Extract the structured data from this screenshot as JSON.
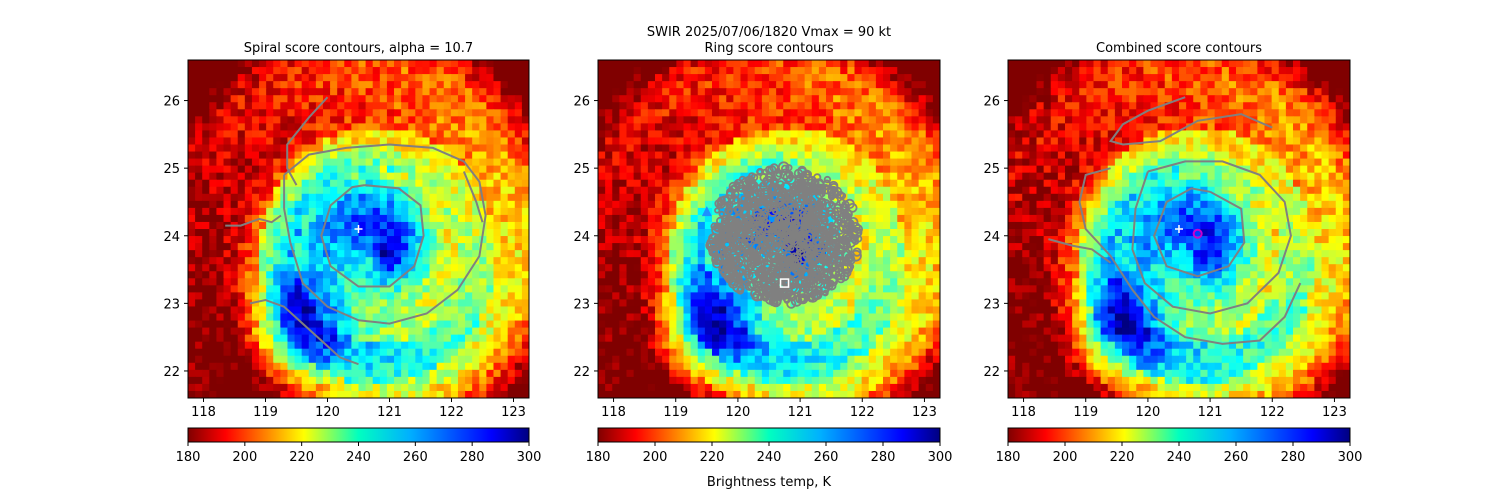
{
  "figure": {
    "suptitle_line1": "SWIR  2025/07/06/1820    Vmax = 90 kt",
    "colorbar_label": "Brightness temp, K"
  },
  "chart_data": [
    {
      "type": "heatmap",
      "title": "Spiral score contours, alpha = 10.7",
      "xlabel": "",
      "ylabel": "",
      "xlim": [
        117.75,
        123.25
      ],
      "ylim": [
        21.6,
        26.6
      ],
      "xticks": [
        118,
        119,
        120,
        121,
        122,
        123
      ],
      "yticks": [
        22,
        23,
        24,
        25,
        26
      ],
      "colormap": "jet",
      "clim": [
        180,
        300
      ],
      "colorbar_ticks": [
        180,
        200,
        220,
        240,
        260,
        280,
        300
      ],
      "storm_center": [
        120.8,
        23.7
      ],
      "eye_radius_deg": 0.55,
      "markers": [
        {
          "shape": "plus",
          "lon": 120.5,
          "lat": 24.1,
          "color": "#ffffff"
        }
      ],
      "contours": [
        {
          "color": "#808080",
          "points": [
            [
              120.6,
              24.75
            ],
            [
              121.15,
              24.7
            ],
            [
              121.5,
              24.45
            ],
            [
              121.55,
              24.0
            ],
            [
              121.4,
              23.55
            ],
            [
              121.0,
              23.25
            ],
            [
              120.5,
              23.25
            ],
            [
              120.05,
              23.55
            ],
            [
              119.9,
              24.0
            ],
            [
              120.05,
              24.45
            ],
            [
              120.4,
              24.72
            ],
            [
              120.6,
              24.75
            ]
          ]
        },
        {
          "color": "#808080",
          "points": [
            [
              119.3,
              24.9
            ],
            [
              119.7,
              25.2
            ],
            [
              120.3,
              25.3
            ],
            [
              121.0,
              25.35
            ],
            [
              121.7,
              25.3
            ],
            [
              122.2,
              25.1
            ],
            [
              122.45,
              24.8
            ],
            [
              122.55,
              24.3
            ],
            [
              122.45,
              23.7
            ],
            [
              122.1,
              23.2
            ],
            [
              121.6,
              22.85
            ],
            [
              121.0,
              22.7
            ],
            [
              120.5,
              22.75
            ],
            [
              120.0,
              22.95
            ],
            [
              119.6,
              23.3
            ],
            [
              119.4,
              23.9
            ],
            [
              119.3,
              24.4
            ],
            [
              119.3,
              24.9
            ]
          ]
        },
        {
          "color": "#808080",
          "points": [
            [
              120.0,
              26.05
            ],
            [
              119.7,
              25.75
            ],
            [
              119.35,
              25.35
            ],
            [
              119.35,
              25.0
            ],
            [
              119.5,
              24.75
            ]
          ]
        },
        {
          "color": "#808080",
          "points": [
            [
              118.35,
              24.15
            ],
            [
              118.6,
              24.15
            ],
            [
              118.9,
              24.25
            ],
            [
              119.1,
              24.2
            ],
            [
              119.25,
              24.3
            ]
          ]
        },
        {
          "color": "#808080",
          "points": [
            [
              118.75,
              23.0
            ],
            [
              119.0,
              23.05
            ],
            [
              119.3,
              22.95
            ],
            [
              119.6,
              22.7
            ],
            [
              119.9,
              22.45
            ],
            [
              120.2,
              22.2
            ],
            [
              120.5,
              22.1
            ]
          ]
        },
        {
          "color": "#808080",
          "points": [
            [
              122.2,
              24.95
            ],
            [
              122.4,
              24.5
            ],
            [
              122.5,
              24.2
            ]
          ]
        }
      ]
    },
    {
      "type": "heatmap",
      "title": "Ring score contours",
      "xlabel": "",
      "ylabel": "",
      "xlim": [
        117.75,
        123.25
      ],
      "ylim": [
        21.6,
        26.6
      ],
      "xticks": [
        118,
        119,
        120,
        121,
        122,
        123
      ],
      "yticks": [
        22,
        23,
        24,
        25,
        26
      ],
      "colormap": "jet",
      "clim": [
        180,
        300
      ],
      "colorbar_ticks": [
        180,
        200,
        220,
        240,
        260,
        280,
        300
      ],
      "storm_center": [
        120.8,
        23.7
      ],
      "eye_radius_deg": 0.55,
      "markers": [
        {
          "shape": "square",
          "lon": 120.75,
          "lat": 23.3,
          "color": "#ffffff"
        },
        {
          "shape": "triangle",
          "lon": 119.5,
          "lat": 24.35,
          "color": "#1e90ff"
        }
      ],
      "contour_field": {
        "color": "#808080",
        "center": [
          120.75,
          24.0
        ],
        "radius_deg": 1.2,
        "density": 950
      }
    },
    {
      "type": "heatmap",
      "title": "Combined score contours",
      "xlabel": "",
      "ylabel": "",
      "xlim": [
        117.75,
        123.25
      ],
      "ylim": [
        21.6,
        26.6
      ],
      "xticks": [
        118,
        119,
        120,
        121,
        122,
        123
      ],
      "yticks": [
        22,
        23,
        24,
        25,
        26
      ],
      "colormap": "jet",
      "clim": [
        180,
        300
      ],
      "colorbar_ticks": [
        180,
        200,
        220,
        240,
        260,
        280,
        300
      ],
      "storm_center": [
        120.8,
        23.7
      ],
      "eye_radius_deg": 0.55,
      "markers": [
        {
          "shape": "plus",
          "lon": 120.5,
          "lat": 24.1,
          "color": "#ffffff"
        },
        {
          "shape": "circle",
          "lon": 120.8,
          "lat": 24.03,
          "color": "#cc00cc"
        }
      ],
      "contours": [
        {
          "color": "#808080",
          "points": [
            [
              121.0,
              24.65
            ],
            [
              121.5,
              24.4
            ],
            [
              121.55,
              23.9
            ],
            [
              121.3,
              23.55
            ],
            [
              120.8,
              23.4
            ],
            [
              120.3,
              23.55
            ],
            [
              120.1,
              24.0
            ],
            [
              120.3,
              24.5
            ],
            [
              120.7,
              24.7
            ],
            [
              121.0,
              24.65
            ]
          ]
        },
        {
          "color": "#808080",
          "points": [
            [
              120.0,
              24.95
            ],
            [
              120.6,
              25.1
            ],
            [
              121.2,
              25.1
            ],
            [
              121.8,
              24.9
            ],
            [
              122.2,
              24.5
            ],
            [
              122.3,
              24.0
            ],
            [
              122.1,
              23.45
            ],
            [
              121.6,
              23.0
            ],
            [
              121.0,
              22.85
            ],
            [
              120.4,
              22.95
            ],
            [
              119.95,
              23.3
            ],
            [
              119.75,
              23.8
            ],
            [
              119.8,
              24.4
            ],
            [
              120.0,
              24.95
            ]
          ]
        },
        {
          "color": "#808080",
          "points": [
            [
              119.4,
              25.0
            ],
            [
              119.0,
              24.9
            ],
            [
              118.9,
              24.5
            ],
            [
              119.0,
              24.1
            ],
            [
              119.4,
              23.7
            ],
            [
              119.75,
              23.2
            ],
            [
              120.1,
              22.8
            ],
            [
              120.6,
              22.5
            ],
            [
              121.2,
              22.4
            ],
            [
              121.8,
              22.45
            ],
            [
              122.2,
              22.8
            ],
            [
              122.45,
              23.3
            ]
          ]
        },
        {
          "color": "#808080",
          "points": [
            [
              120.6,
              26.05
            ],
            [
              120.0,
              25.85
            ],
            [
              119.6,
              25.65
            ],
            [
              119.4,
              25.4
            ],
            [
              119.6,
              25.35
            ],
            [
              120.2,
              25.4
            ],
            [
              120.8,
              25.7
            ],
            [
              121.5,
              25.8
            ],
            [
              122.0,
              25.6
            ]
          ]
        },
        {
          "color": "#808080",
          "points": [
            [
              118.4,
              23.95
            ],
            [
              118.8,
              23.85
            ],
            [
              119.1,
              23.8
            ],
            [
              119.4,
              23.6
            ]
          ]
        }
      ]
    }
  ]
}
